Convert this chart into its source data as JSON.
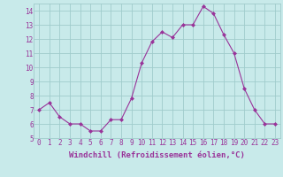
{
  "x": [
    0,
    1,
    2,
    3,
    4,
    5,
    6,
    7,
    8,
    9,
    10,
    11,
    12,
    13,
    14,
    15,
    16,
    17,
    18,
    19,
    20,
    21,
    22,
    23
  ],
  "y": [
    7.0,
    7.5,
    6.5,
    6.0,
    6.0,
    5.5,
    5.5,
    6.3,
    6.3,
    7.8,
    10.3,
    11.8,
    12.5,
    12.1,
    13.0,
    13.0,
    14.3,
    13.8,
    12.3,
    11.0,
    8.5,
    7.0,
    6.0,
    6.0
  ],
  "line_color": "#993399",
  "marker_color": "#993399",
  "bg_color": "#c8eaea",
  "grid_color": "#a0cccc",
  "xlabel": "Windchill (Refroidissement éolien,°C)",
  "ylim": [
    5,
    14.5
  ],
  "xlim": [
    -0.5,
    23.5
  ],
  "yticks": [
    5,
    6,
    7,
    8,
    9,
    10,
    11,
    12,
    13,
    14
  ],
  "xticks": [
    0,
    1,
    2,
    3,
    4,
    5,
    6,
    7,
    8,
    9,
    10,
    11,
    12,
    13,
    14,
    15,
    16,
    17,
    18,
    19,
    20,
    21,
    22,
    23
  ],
  "tick_label_color": "#993399",
  "axis_label_color": "#993399",
  "xlabel_fontsize": 6.5,
  "tick_fontsize": 5.5,
  "linewidth": 0.8,
  "markersize": 2.0
}
